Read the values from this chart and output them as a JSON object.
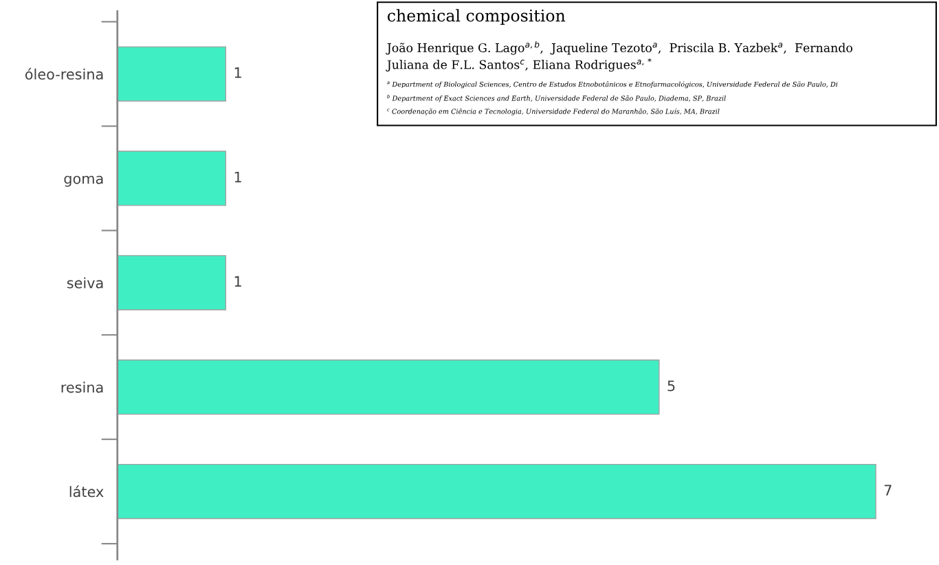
{
  "chart_data": {
    "type": "bar",
    "orientation": "horizontal",
    "categories": [
      "óleo-resina",
      "goma",
      "seiva",
      "resina",
      "látex"
    ],
    "values": [
      1,
      1,
      1,
      5,
      7
    ],
    "color": "#40eec4",
    "data_labels": true,
    "grid": false,
    "tick_labels": "y",
    "annotations": [
      "chemical composition",
      "João Henrique G. Lago$^{a,b}$,  Jaqueline Tezoto$^{a}$,  Priscila B. Yazbek$^{a}$,  Fernando",
      "Juliana de F.L. Santos$^{c}$, Eliana Rodrigues$^{a,*}$",
      "$^{a}$ Department of Biological Sciences, Centro de Estudos Etnobotânicos e Etnofarmacológicos, Universidade Federal de São Paulo, Di",
      "$^{b}$ Department of Exact Sciences and Earth, Universidade Federal de São Paulo, Diadema, SP, Brazil",
      "$^{c}$ Coordenação em Ciência e Tecnologia, Universidade Federal do Maranhão, São Luís, MA, Brazil"
    ]
  }
}
